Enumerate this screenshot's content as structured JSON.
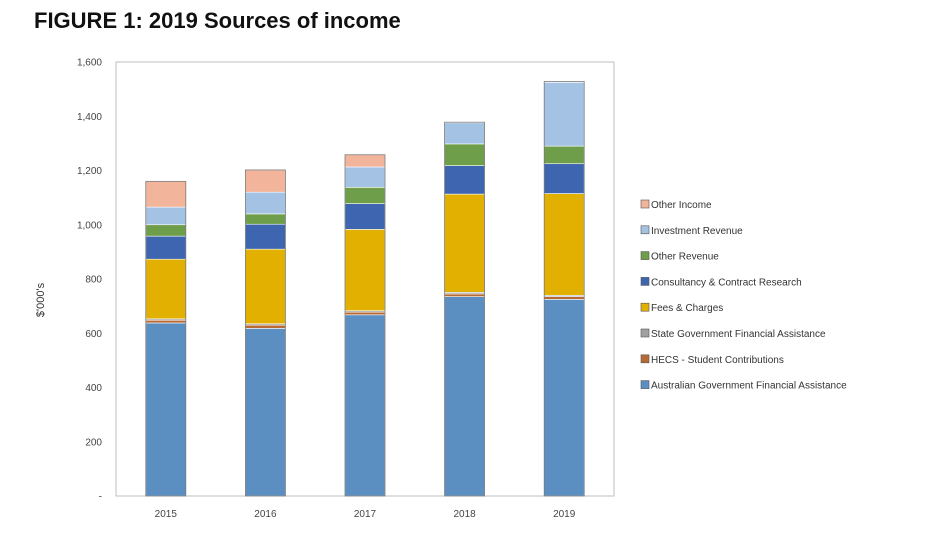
{
  "figure_title": "FIGURE 1: 2019 Sources of income",
  "chart_data": {
    "type": "bar",
    "stacked": true,
    "title": "FIGURE 1: 2019 Sources of income",
    "xlabel": "",
    "ylabel": "$'000's",
    "ylim": [
      0,
      1600
    ],
    "ytick_labels": [
      "-",
      "200",
      "400",
      "600",
      "800",
      "1,000",
      "1,200",
      "1,400",
      "1,600"
    ],
    "grid": false,
    "legend_position": "right",
    "categories": [
      "2015",
      "2016",
      "2017",
      "2018",
      "2019"
    ],
    "series": [
      {
        "name": "Australian Government Financial Assistance",
        "color": "#5b8fc2",
        "values": [
          638,
          618,
          668,
          735,
          725
        ]
      },
      {
        "name": "HECS - Student Contributions",
        "color": "#b86a35",
        "values": [
          10,
          12,
          10,
          10,
          10
        ]
      },
      {
        "name": "State Government Financial Assistance",
        "color": "#a0a0a0",
        "values": [
          5,
          5,
          5,
          6,
          5
        ]
      },
      {
        "name": "Fees & Charges",
        "color": "#e2b000",
        "values": [
          220,
          275,
          300,
          362,
          375
        ]
      },
      {
        "name": "Consultancy & Contract Research",
        "color": "#3e66b0",
        "values": [
          85,
          92,
          95,
          105,
          110
        ]
      },
      {
        "name": "Other Revenue",
        "color": "#6e9e4a",
        "values": [
          42,
          38,
          60,
          80,
          65
        ]
      },
      {
        "name": "Investment Revenue",
        "color": "#a4c2e4",
        "values": [
          65,
          80,
          75,
          78,
          235
        ]
      },
      {
        "name": "Other Income",
        "color": "#f2b49a",
        "values": [
          95,
          82,
          45,
          2,
          3
        ]
      }
    ]
  }
}
